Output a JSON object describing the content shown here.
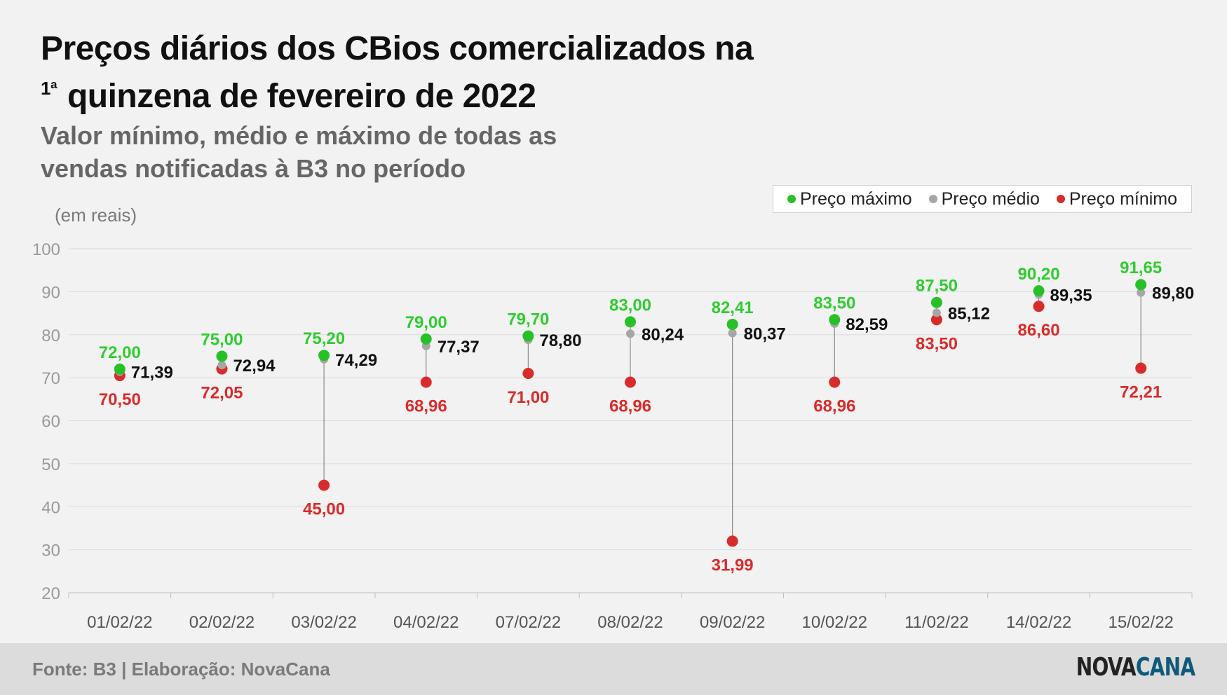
{
  "title_line1": "Preços diários dos CBios comercializados na",
  "title_line2_sup": "1ª",
  "title_line2": "quinzena de fevereiro de 2022",
  "subtitle_line1": "Valor mínimo, médio e máximo de todas as",
  "subtitle_line2": "vendas notificadas à B3 no período",
  "legend": [
    {
      "label": "Preço máximo",
      "color": "#27c127"
    },
    {
      "label": "Preço médio",
      "color": "#a6a6a6"
    },
    {
      "label": "Preço mínimo",
      "color": "#d92b2b"
    }
  ],
  "footer": {
    "source": "Fonte: B3 | Elaboração: NovaCana",
    "logo_part1": "NOVA",
    "logo_part2": "CANA"
  },
  "chart_data": {
    "type": "scatter",
    "ylabel": "(em reais)",
    "ylim": [
      20,
      100
    ],
    "yticks": [
      20,
      30,
      40,
      50,
      60,
      70,
      80,
      90,
      100
    ],
    "grid": true,
    "legend_position": "top-right",
    "categories": [
      "01/02/22",
      "02/02/22",
      "03/02/22",
      "04/02/22",
      "07/02/22",
      "08/02/22",
      "09/02/22",
      "10/02/22",
      "11/02/22",
      "14/02/22",
      "15/02/22"
    ],
    "series": [
      {
        "name": "Preço máximo",
        "color": "#27c127",
        "label_color": "#2fcc2f",
        "values": [
          72.0,
          75.0,
          75.2,
          79.0,
          79.7,
          83.0,
          82.41,
          83.5,
          87.5,
          90.2,
          91.65
        ],
        "labels": [
          "72,00",
          "75,00",
          "75,20",
          "79,00",
          "79,70",
          "83,00",
          "82,41",
          "83,50",
          "87,50",
          "90,20",
          "91,65"
        ]
      },
      {
        "name": "Preço médio",
        "color": "#a6a6a6",
        "label_color": "#111111",
        "values": [
          71.39,
          72.94,
          74.29,
          77.37,
          78.8,
          80.24,
          80.37,
          82.59,
          85.12,
          89.35,
          89.8
        ],
        "labels": [
          "71,39",
          "72,94",
          "74,29",
          "77,37",
          "78,80",
          "80,24",
          "80,37",
          "82,59",
          "85,12",
          "89,35",
          "89,80"
        ]
      },
      {
        "name": "Preço mínimo",
        "color": "#d92b2b",
        "label_color": "#d92b2b",
        "values": [
          70.5,
          72.05,
          45.0,
          68.96,
          71.0,
          68.96,
          31.99,
          68.96,
          83.5,
          86.6,
          72.21
        ],
        "labels": [
          "70,50",
          "72,05",
          "45,00",
          "68,96",
          "71,00",
          "68,96",
          "31,99",
          "68,96",
          "83,50",
          "86,60",
          "72,21"
        ]
      }
    ]
  }
}
